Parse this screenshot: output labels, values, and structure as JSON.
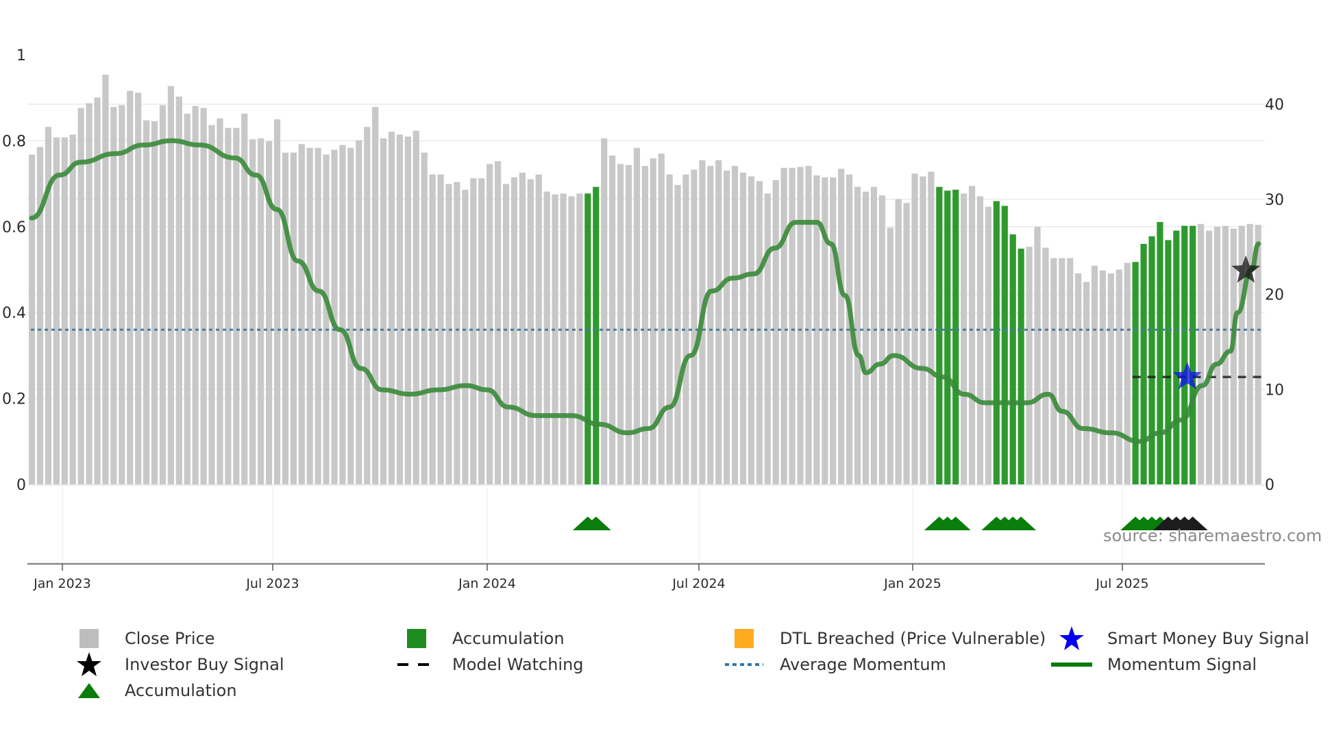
{
  "chart_data": {
    "type": "bar",
    "title": "",
    "xlabel": "",
    "ylabel_left": "",
    "ylabel_right": "",
    "left_axis": {
      "ticks": [
        "0",
        "0.2",
        "0.4",
        "0.6",
        "0.8",
        "1"
      ],
      "range": [
        0,
        1.0
      ]
    },
    "right_axis": {
      "ticks": [
        "0",
        "10",
        "20",
        "30",
        "40"
      ],
      "range": [
        0,
        43
      ]
    },
    "x_ticks": [
      "Jan 2023",
      "Jul 2023",
      "Jan 2024",
      "Jul 2024",
      "Jan 2025",
      "Jul 2025"
    ],
    "grid": true,
    "legend_position": "bottom",
    "close_price": [
      34.7,
      35.5,
      37.6,
      36.5,
      36.5,
      36.8,
      39.6,
      40.1,
      40.7,
      43.1,
      39.7,
      39.9,
      41.4,
      41.2,
      38.3,
      38.2,
      39.9,
      41.9,
      40.8,
      39.0,
      39.8,
      39.6,
      37.8,
      38.5,
      37.5,
      37.5,
      39.0,
      36.3,
      36.4,
      36.1,
      38.4,
      34.9,
      34.9,
      35.8,
      35.4,
      35.4,
      34.7,
      35.2,
      35.7,
      35.4,
      36.2,
      37.6,
      39.7,
      36.4,
      37.1,
      36.8,
      36.6,
      37.2,
      34.9,
      32.6,
      32.6,
      31.6,
      31.8,
      31.0,
      32.2,
      32.2,
      33.7,
      34.0,
      31.6,
      32.3,
      32.8,
      32.1,
      32.6,
      30.8,
      30.5,
      30.6,
      30.3,
      30.6,
      30.6,
      31.3,
      36.4,
      34.6,
      33.7,
      33.6,
      35.4,
      33.5,
      34.3,
      34.8,
      32.6,
      31.5,
      32.6,
      33.1,
      34.1,
      33.5,
      34.1,
      33.0,
      33.5,
      32.8,
      32.4,
      31.9,
      30.6,
      32.0,
      33.3,
      33.3,
      33.4,
      33.5,
      32.5,
      32.3,
      32.3,
      33.2,
      32.6,
      31.3,
      30.8,
      31.3,
      30.4,
      27.0,
      30.0,
      29.6,
      32.7,
      32.4,
      32.9,
      31.3,
      30.9,
      31.0,
      30.6,
      31.4,
      30.3,
      29.2,
      29.8,
      29.3,
      26.3,
      24.8,
      25.0,
      27.1,
      24.9,
      23.8,
      23.8,
      23.8,
      22.2,
      21.3,
      23.0,
      22.5,
      22.2,
      22.6,
      23.3,
      23.4,
      25.3,
      26.1,
      27.6,
      25.7,
      26.7,
      27.2,
      27.2,
      27.4,
      26.7,
      27.1,
      27.2,
      26.9,
      27.2,
      27.4,
      27.3
    ],
    "accumulation_bars": [
      69,
      70,
      112,
      113,
      114,
      119,
      120,
      121,
      122,
      136,
      137,
      138,
      139,
      140,
      141,
      142,
      143
    ],
    "momentum_signal": [
      [
        0,
        0.62
      ],
      [
        4,
        0.72
      ],
      [
        7,
        0.75
      ],
      [
        12,
        0.77
      ],
      [
        16,
        0.79
      ],
      [
        20,
        0.8
      ],
      [
        24,
        0.79
      ],
      [
        29,
        0.76
      ],
      [
        32,
        0.72
      ],
      [
        35,
        0.64
      ],
      [
        38,
        0.52
      ],
      [
        41,
        0.45
      ],
      [
        44,
        0.36
      ],
      [
        47,
        0.27
      ],
      [
        50,
        0.22
      ],
      [
        54,
        0.21
      ],
      [
        58,
        0.22
      ],
      [
        62,
        0.23
      ],
      [
        65,
        0.22
      ],
      [
        68,
        0.18
      ],
      [
        72,
        0.16
      ],
      [
        77,
        0.16
      ],
      [
        81,
        0.14
      ],
      [
        85,
        0.12
      ],
      [
        88,
        0.13
      ],
      [
        91,
        0.18
      ],
      [
        94,
        0.3
      ],
      [
        97,
        0.45
      ],
      [
        100,
        0.48
      ],
      [
        103,
        0.49
      ],
      [
        106,
        0.55
      ],
      [
        109,
        0.61
      ],
      [
        112,
        0.61
      ],
      [
        114,
        0.56
      ],
      [
        116,
        0.44
      ],
      [
        118,
        0.3
      ],
      [
        119,
        0.26
      ],
      [
        121,
        0.28
      ],
      [
        123,
        0.3
      ],
      [
        127,
        0.27
      ],
      [
        130,
        0.25
      ],
      [
        133,
        0.21
      ],
      [
        136,
        0.19
      ],
      [
        139,
        0.19
      ],
      [
        142,
        0.19
      ],
      [
        145,
        0.21
      ],
      [
        147,
        0.17
      ],
      [
        150,
        0.13
      ],
      [
        154,
        0.12
      ],
      [
        158,
        0.1
      ],
      [
        161,
        0.12
      ],
      [
        164,
        0.15
      ],
      [
        167,
        0.23
      ],
      [
        169,
        0.28
      ],
      [
        171,
        0.31
      ],
      [
        172,
        0.4
      ],
      [
        174,
        0.5
      ],
      [
        175,
        0.56
      ]
    ],
    "average_momentum": 0.36,
    "model_watching_level": 11.3,
    "model_watching_range": [
      136,
      151
    ],
    "smart_money_buy_signal": {
      "bar": 142,
      "value": 11.3
    },
    "investor_buy_signal": {
      "bar": 149,
      "value": 22.5
    },
    "accumulation_markers": [
      69,
      70,
      112,
      113,
      114,
      119,
      120,
      121,
      122,
      136,
      137,
      138,
      139
    ],
    "watching_markers": [
      140,
      141,
      142,
      143
    ],
    "momentum_x_scale_bars": 151
  },
  "legend": {
    "items": [
      {
        "label": "Close Price",
        "symbol": "gray-square-icon"
      },
      {
        "label": "Accumulation",
        "symbol": "green-square-icon"
      },
      {
        "label": "DTL Breached (Price Vulnerable)",
        "symbol": "orange-square-icon"
      },
      {
        "label": "Smart Money Buy Signal",
        "symbol": "blue-star-icon"
      },
      {
        "label": "Investor Buy Signal",
        "symbol": "black-star-icon"
      },
      {
        "label": "Model Watching",
        "symbol": "dashed-line-icon"
      },
      {
        "label": "Average Momentum",
        "symbol": "dotted-line-icon"
      },
      {
        "label": "Momentum Signal",
        "symbol": "green-line-icon"
      },
      {
        "label": "Accumulation",
        "symbol": "green-triangle-icon"
      }
    ]
  },
  "source": "source: sharemaestro.com",
  "colors": {
    "close_price": "#c8c8c8",
    "accumulation": "#2e9a2e",
    "dtl_breached": "#ffab1f",
    "smart_money": "#1010ee",
    "investor": "#000000",
    "momentum": "#3a8a3a",
    "average_momentum": "#4a7aa0",
    "triangle_green": "#0a7d0a"
  }
}
